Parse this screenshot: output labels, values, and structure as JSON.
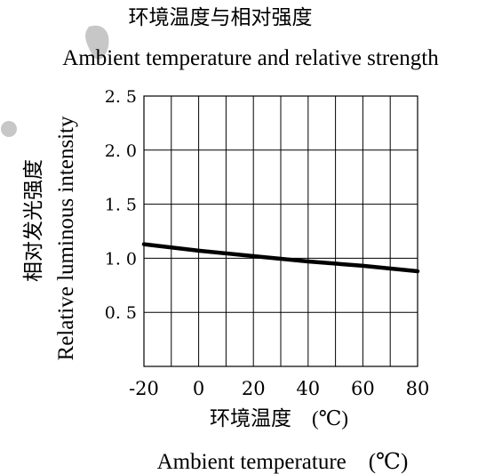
{
  "chart_data": {
    "type": "line",
    "title_cn": "环境温度与相对强度",
    "title": "Ambient temperature and relative strength",
    "xlabel_cn": "环境温度　(℃)",
    "xlabel": "Ambient temperature　(℃)",
    "ylabel_cn": "相对发光强度",
    "ylabel": "Relative luminous intensity",
    "x_ticks": [
      "-20",
      "0",
      "20",
      "40",
      "60",
      "80"
    ],
    "y_ticks": [
      "0. 5",
      "1. 0",
      "1. 5",
      "2. 0",
      "2. 5"
    ],
    "xlim": [
      -20,
      80
    ],
    "ylim": [
      0,
      2.5
    ],
    "grid": true,
    "series": [
      {
        "x": [
          -20,
          0,
          20,
          40,
          60,
          80
        ],
        "y": [
          1.13,
          1.07,
          1.02,
          0.97,
          0.93,
          0.88
        ]
      }
    ]
  }
}
